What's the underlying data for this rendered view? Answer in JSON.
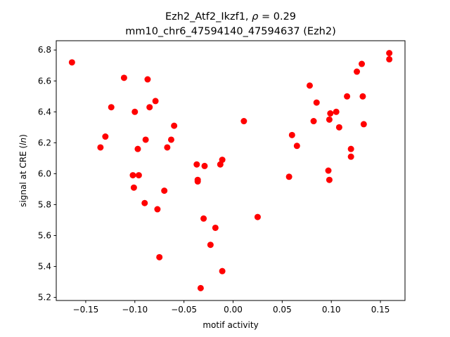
{
  "chart_data": {
    "type": "scatter",
    "title_line1_prefix": "Ezh2_Atf2_Ikzf1, ",
    "title_line1_rho": "ρ",
    "title_line1_suffix": " = 0.29",
    "title_line2": "mm10_chr6_47594140_47594637 (Ezh2)",
    "xlabel": "motif activity",
    "ylabel_prefix": "signal at CRE (",
    "ylabel_italic": "ln",
    "ylabel_suffix": ")",
    "xlim": [
      -0.18,
      0.175
    ],
    "ylim": [
      5.18,
      6.86
    ],
    "xticks": [
      -0.15,
      -0.1,
      -0.05,
      0.0,
      0.05,
      0.1,
      0.15
    ],
    "xtick_labels": [
      "−0.15",
      "−0.10",
      "−0.05",
      "0.00",
      "0.05",
      "0.10",
      "0.15"
    ],
    "yticks": [
      5.2,
      5.4,
      5.6,
      5.8,
      6.0,
      6.2,
      6.4,
      6.6,
      6.8
    ],
    "ytick_labels": [
      "5.2",
      "5.4",
      "5.6",
      "5.8",
      "6.0",
      "6.2",
      "6.4",
      "6.6",
      "6.8"
    ],
    "marker_color": "#ff0000",
    "grid": false,
    "points": [
      {
        "x": -0.164,
        "y": 6.72
      },
      {
        "x": -0.135,
        "y": 6.17
      },
      {
        "x": -0.13,
        "y": 6.24
      },
      {
        "x": -0.124,
        "y": 6.43
      },
      {
        "x": -0.111,
        "y": 6.62
      },
      {
        "x": -0.102,
        "y": 5.99
      },
      {
        "x": -0.101,
        "y": 5.91
      },
      {
        "x": -0.1,
        "y": 6.4
      },
      {
        "x": -0.097,
        "y": 6.16
      },
      {
        "x": -0.096,
        "y": 5.99
      },
      {
        "x": -0.09,
        "y": 5.81
      },
      {
        "x": -0.089,
        "y": 6.22
      },
      {
        "x": -0.087,
        "y": 6.61
      },
      {
        "x": -0.085,
        "y": 6.43
      },
      {
        "x": -0.079,
        "y": 6.47
      },
      {
        "x": -0.077,
        "y": 5.77
      },
      {
        "x": -0.075,
        "y": 5.46
      },
      {
        "x": -0.07,
        "y": 5.89
      },
      {
        "x": -0.067,
        "y": 6.17
      },
      {
        "x": -0.063,
        "y": 6.22
      },
      {
        "x": -0.06,
        "y": 6.31
      },
      {
        "x": -0.037,
        "y": 6.06
      },
      {
        "x": -0.036,
        "y": 5.95
      },
      {
        "x": -0.036,
        "y": 5.96
      },
      {
        "x": -0.033,
        "y": 5.26
      },
      {
        "x": -0.03,
        "y": 5.71
      },
      {
        "x": -0.029,
        "y": 6.05
      },
      {
        "x": -0.023,
        "y": 5.54
      },
      {
        "x": -0.018,
        "y": 5.65
      },
      {
        "x": -0.013,
        "y": 6.06
      },
      {
        "x": -0.011,
        "y": 6.09
      },
      {
        "x": -0.011,
        "y": 5.37
      },
      {
        "x": 0.011,
        "y": 6.34
      },
      {
        "x": 0.025,
        "y": 5.72
      },
      {
        "x": 0.057,
        "y": 5.98
      },
      {
        "x": 0.06,
        "y": 6.25
      },
      {
        "x": 0.065,
        "y": 6.18
      },
      {
        "x": 0.078,
        "y": 6.57
      },
      {
        "x": 0.082,
        "y": 6.34
      },
      {
        "x": 0.085,
        "y": 6.46
      },
      {
        "x": 0.097,
        "y": 6.02
      },
      {
        "x": 0.098,
        "y": 6.35
      },
      {
        "x": 0.098,
        "y": 5.96
      },
      {
        "x": 0.099,
        "y": 6.39
      },
      {
        "x": 0.105,
        "y": 6.4
      },
      {
        "x": 0.108,
        "y": 6.3
      },
      {
        "x": 0.116,
        "y": 6.5
      },
      {
        "x": 0.12,
        "y": 6.16
      },
      {
        "x": 0.12,
        "y": 6.11
      },
      {
        "x": 0.126,
        "y": 6.66
      },
      {
        "x": 0.131,
        "y": 6.71
      },
      {
        "x": 0.132,
        "y": 6.5
      },
      {
        "x": 0.133,
        "y": 6.32
      },
      {
        "x": 0.159,
        "y": 6.78
      },
      {
        "x": 0.159,
        "y": 6.74
      }
    ]
  }
}
